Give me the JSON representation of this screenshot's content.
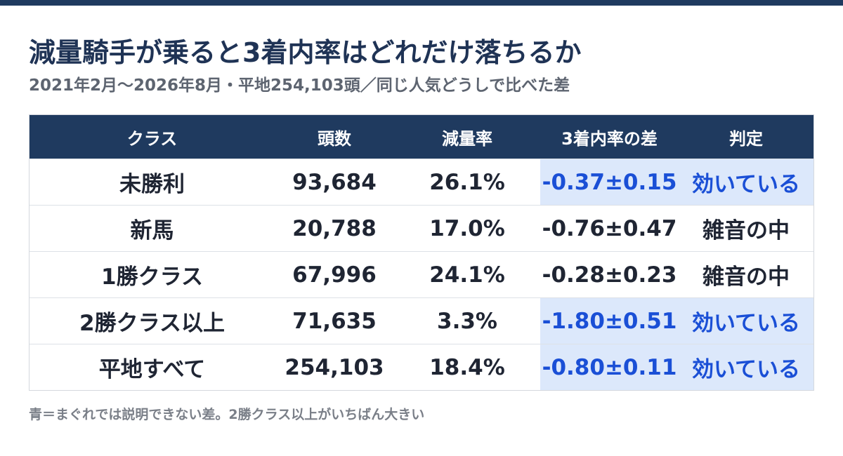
{
  "header": {
    "title": "減量騎手が乗ると3着内率はどれだけ落ちるか",
    "subtitle": "2021年2月〜2026年8月・平地254,103頭／同じ人気どうしで比べた差"
  },
  "table": {
    "columns": [
      "クラス",
      "頭数",
      "減量率",
      "3着内率の差",
      "判定"
    ],
    "rows": [
      {
        "cells": [
          "未勝利",
          "93,684",
          "26.1%",
          "-0.37±0.15",
          "効いている"
        ],
        "highlight": true
      },
      {
        "cells": [
          "新馬",
          "20,788",
          "17.0%",
          "-0.76±0.47",
          "雑音の中"
        ],
        "highlight": false
      },
      {
        "cells": [
          "1勝クラス",
          "67,996",
          "24.1%",
          "-0.28±0.23",
          "雑音の中"
        ],
        "highlight": false
      },
      {
        "cells": [
          "2勝クラス以上",
          "71,635",
          "3.3%",
          "-1.80±0.51",
          "効いている"
        ],
        "highlight": true
      },
      {
        "cells": [
          "平地すべて",
          "254,103",
          "18.4%",
          "-0.80±0.11",
          "効いている"
        ],
        "highlight": true
      }
    ]
  },
  "footnote": "青＝まぐれでは説明できない差。2勝クラス以上がいちばん大きい"
}
